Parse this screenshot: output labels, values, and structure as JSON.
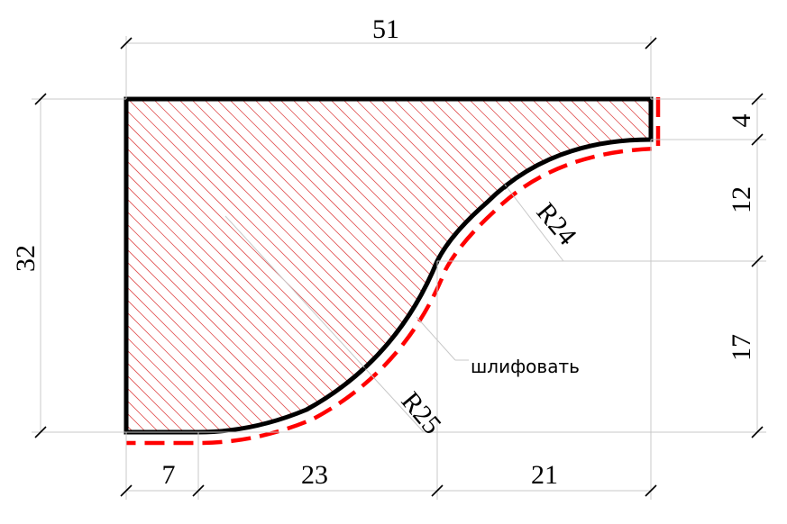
{
  "dimensions": {
    "overall_width": "51",
    "overall_height": "32",
    "top_step": "4",
    "right_middle": "12",
    "right_lower": "17",
    "bottom_flat": "7",
    "bottom_middle": "23",
    "bottom_right": "21"
  },
  "radii": {
    "upper_arc": "R24",
    "lower_arc": "R25"
  },
  "note": "шлифовать",
  "colors": {
    "outline": "#000000",
    "hatch": "#e05050",
    "finish_line": "#ff0000",
    "dimension_line": "#c8c8c8"
  }
}
